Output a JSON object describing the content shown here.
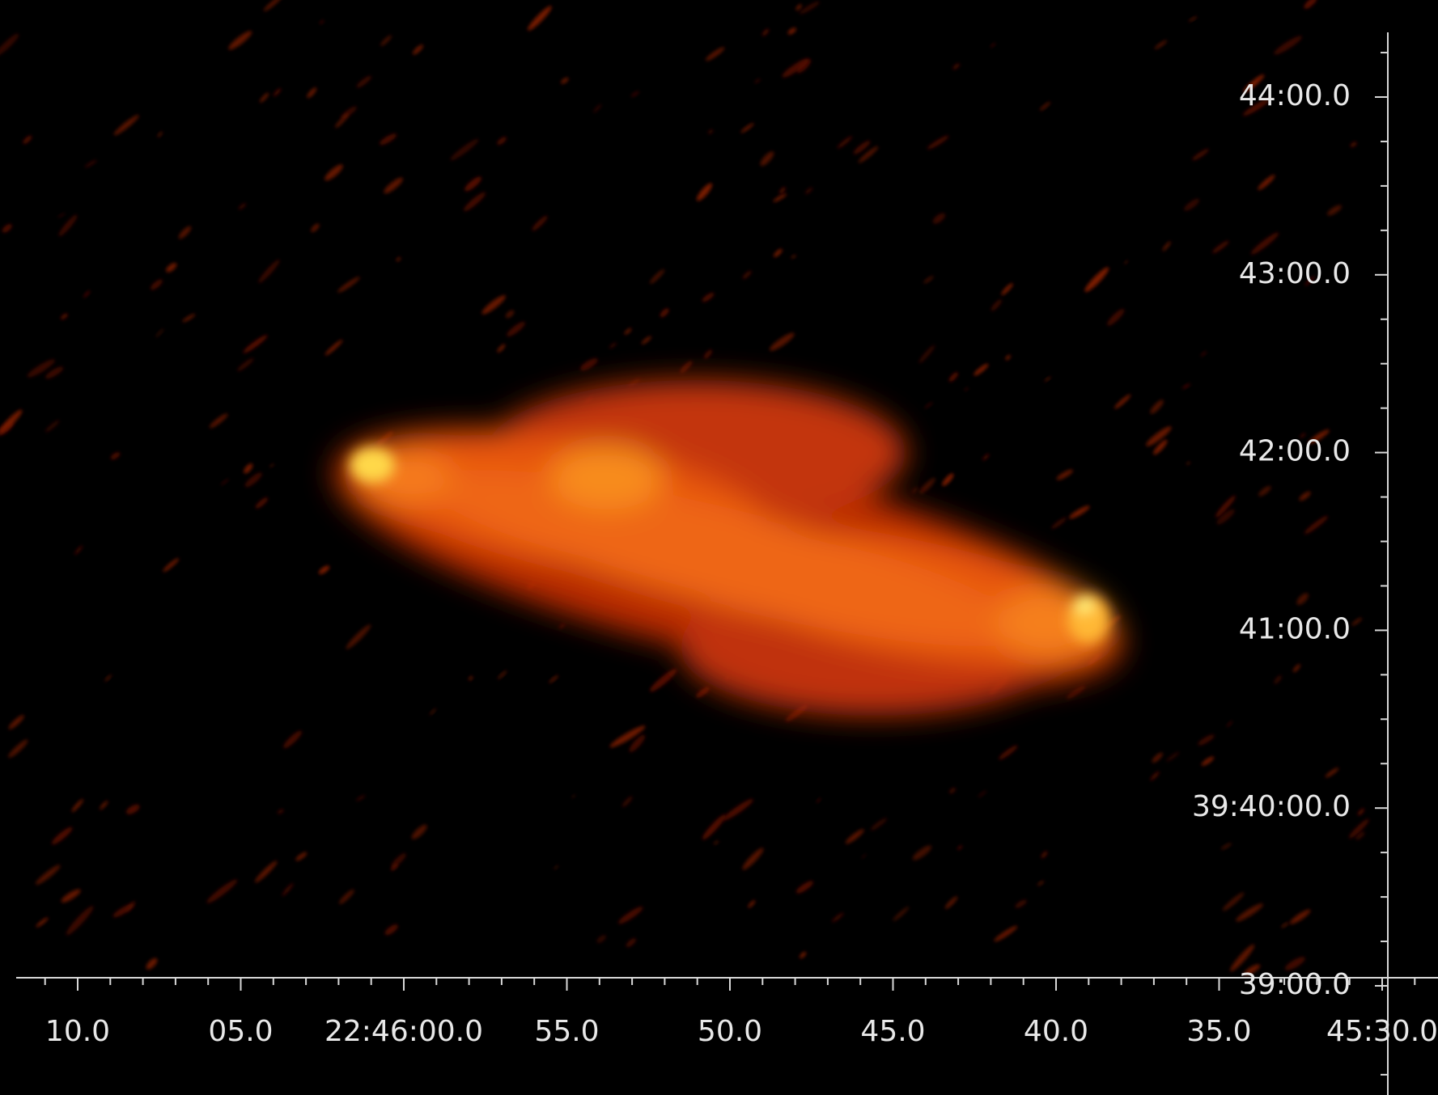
{
  "x_axis": {
    "labels": [
      "10.0",
      "05.0",
      "22:46:00.0",
      "55.0",
      "50.0",
      "45.0",
      "40.0",
      "35.0",
      "45:30.0"
    ]
  },
  "y_axis": {
    "labels": [
      "44:00.0",
      "43:00.0",
      "42:00.0",
      "41:00.0",
      "39:40:00.0",
      "39:00.0"
    ]
  }
}
